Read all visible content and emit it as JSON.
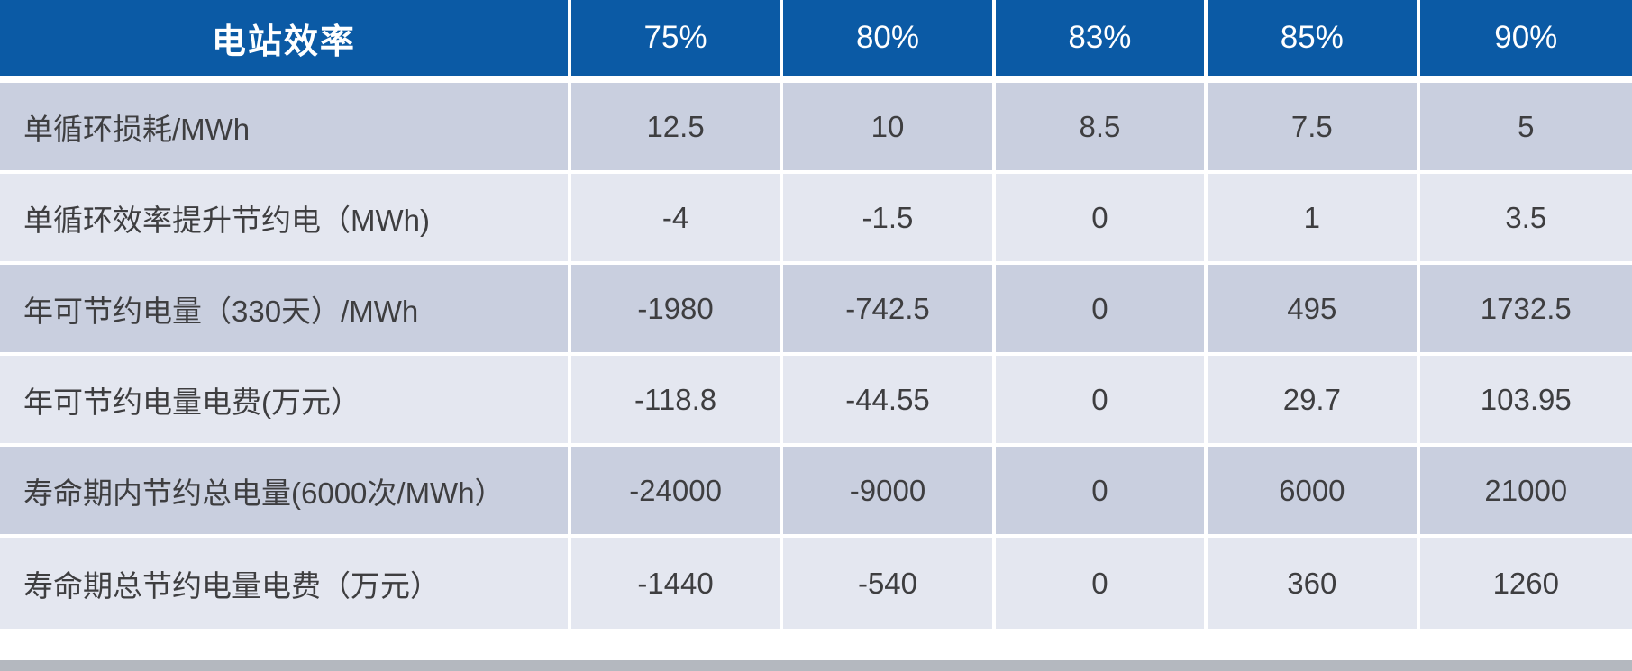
{
  "table": {
    "header": {
      "label": "电站效率",
      "columns": [
        "75%",
        "80%",
        "83%",
        "85%",
        "90%"
      ]
    },
    "rows": [
      {
        "label": "单循环损耗/MWh",
        "values": [
          "12.5",
          "10",
          "8.5",
          "7.5",
          "5"
        ]
      },
      {
        "label": "单循环效率提升节约电（MWh)",
        "values": [
          "-4",
          "-1.5",
          "0",
          "1",
          "3.5"
        ]
      },
      {
        "label": "年可节约电量（330天）/MWh",
        "values": [
          "-1980",
          "-742.5",
          "0",
          "495",
          "1732.5"
        ]
      },
      {
        "label": "年可节约电量电费(万元）",
        "values": [
          "-118.8",
          "-44.55",
          "0",
          "29.7",
          "103.95"
        ]
      },
      {
        "label": "寿命期内节约总电量(6000次/MWh）",
        "values": [
          "-24000",
          "-9000",
          "0",
          "6000",
          "21000"
        ]
      },
      {
        "label": "寿命期总节约电量电费（万元）",
        "values": [
          "-1440",
          "-540",
          "0",
          "360",
          "1260"
        ]
      }
    ],
    "colors": {
      "header_bg": "#0b5aa5",
      "header_text": "#ffffff",
      "row_odd_bg": "#c9cfdf",
      "row_even_bg": "#e4e7f0",
      "body_text": "#3e3e40",
      "divider": "#ffffff",
      "bottom_strip": "#b4b8bf"
    }
  },
  "chart_data": {
    "type": "table",
    "title": "电站效率",
    "columns": [
      "电站效率",
      "75%",
      "80%",
      "83%",
      "85%",
      "90%"
    ],
    "rows": [
      [
        "单循环损耗/MWh",
        12.5,
        10,
        8.5,
        7.5,
        5
      ],
      [
        "单循环效率提升节约电（MWh)",
        -4,
        -1.5,
        0,
        1,
        3.5
      ],
      [
        "年可节约电量（330天）/MWh",
        -1980,
        -742.5,
        0,
        495,
        1732.5
      ],
      [
        "年可节约电量电费(万元）",
        -118.8,
        -44.55,
        0,
        29.7,
        103.95
      ],
      [
        "寿命期内节约总电量(6000次/MWh）",
        -24000,
        -9000,
        0,
        6000,
        21000
      ],
      [
        "寿命期总节约电量电费（万元）",
        -1440,
        -540,
        0,
        360,
        1260
      ]
    ]
  }
}
